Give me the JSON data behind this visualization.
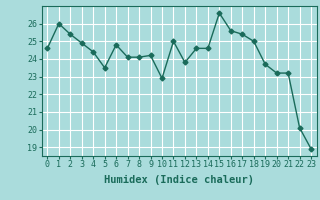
{
  "x": [
    0,
    1,
    2,
    3,
    4,
    5,
    6,
    7,
    8,
    9,
    10,
    11,
    12,
    13,
    14,
    15,
    16,
    17,
    18,
    19,
    20,
    21,
    22,
    23
  ],
  "y": [
    24.6,
    26.0,
    25.4,
    24.9,
    24.4,
    23.5,
    24.8,
    24.1,
    24.1,
    24.2,
    22.9,
    25.0,
    23.8,
    24.6,
    24.6,
    26.6,
    25.6,
    25.4,
    25.0,
    23.7,
    23.2,
    23.2,
    20.1,
    18.9
  ],
  "line_color": "#1a6b5a",
  "bg_color": "#aadcdc",
  "grid_color": "#ffffff",
  "xlabel": "Humidex (Indice chaleur)",
  "ylim": [
    18.5,
    27.0
  ],
  "xlim": [
    -0.5,
    23.5
  ],
  "yticks": [
    19,
    20,
    21,
    22,
    23,
    24,
    25,
    26
  ],
  "xticks": [
    0,
    1,
    2,
    3,
    4,
    5,
    6,
    7,
    8,
    9,
    10,
    11,
    12,
    13,
    14,
    15,
    16,
    17,
    18,
    19,
    20,
    21,
    22,
    23
  ],
  "marker": "D",
  "markersize": 2.5,
  "linewidth": 1.0,
  "xlabel_fontsize": 7.5,
  "tick_fontsize": 6.0
}
